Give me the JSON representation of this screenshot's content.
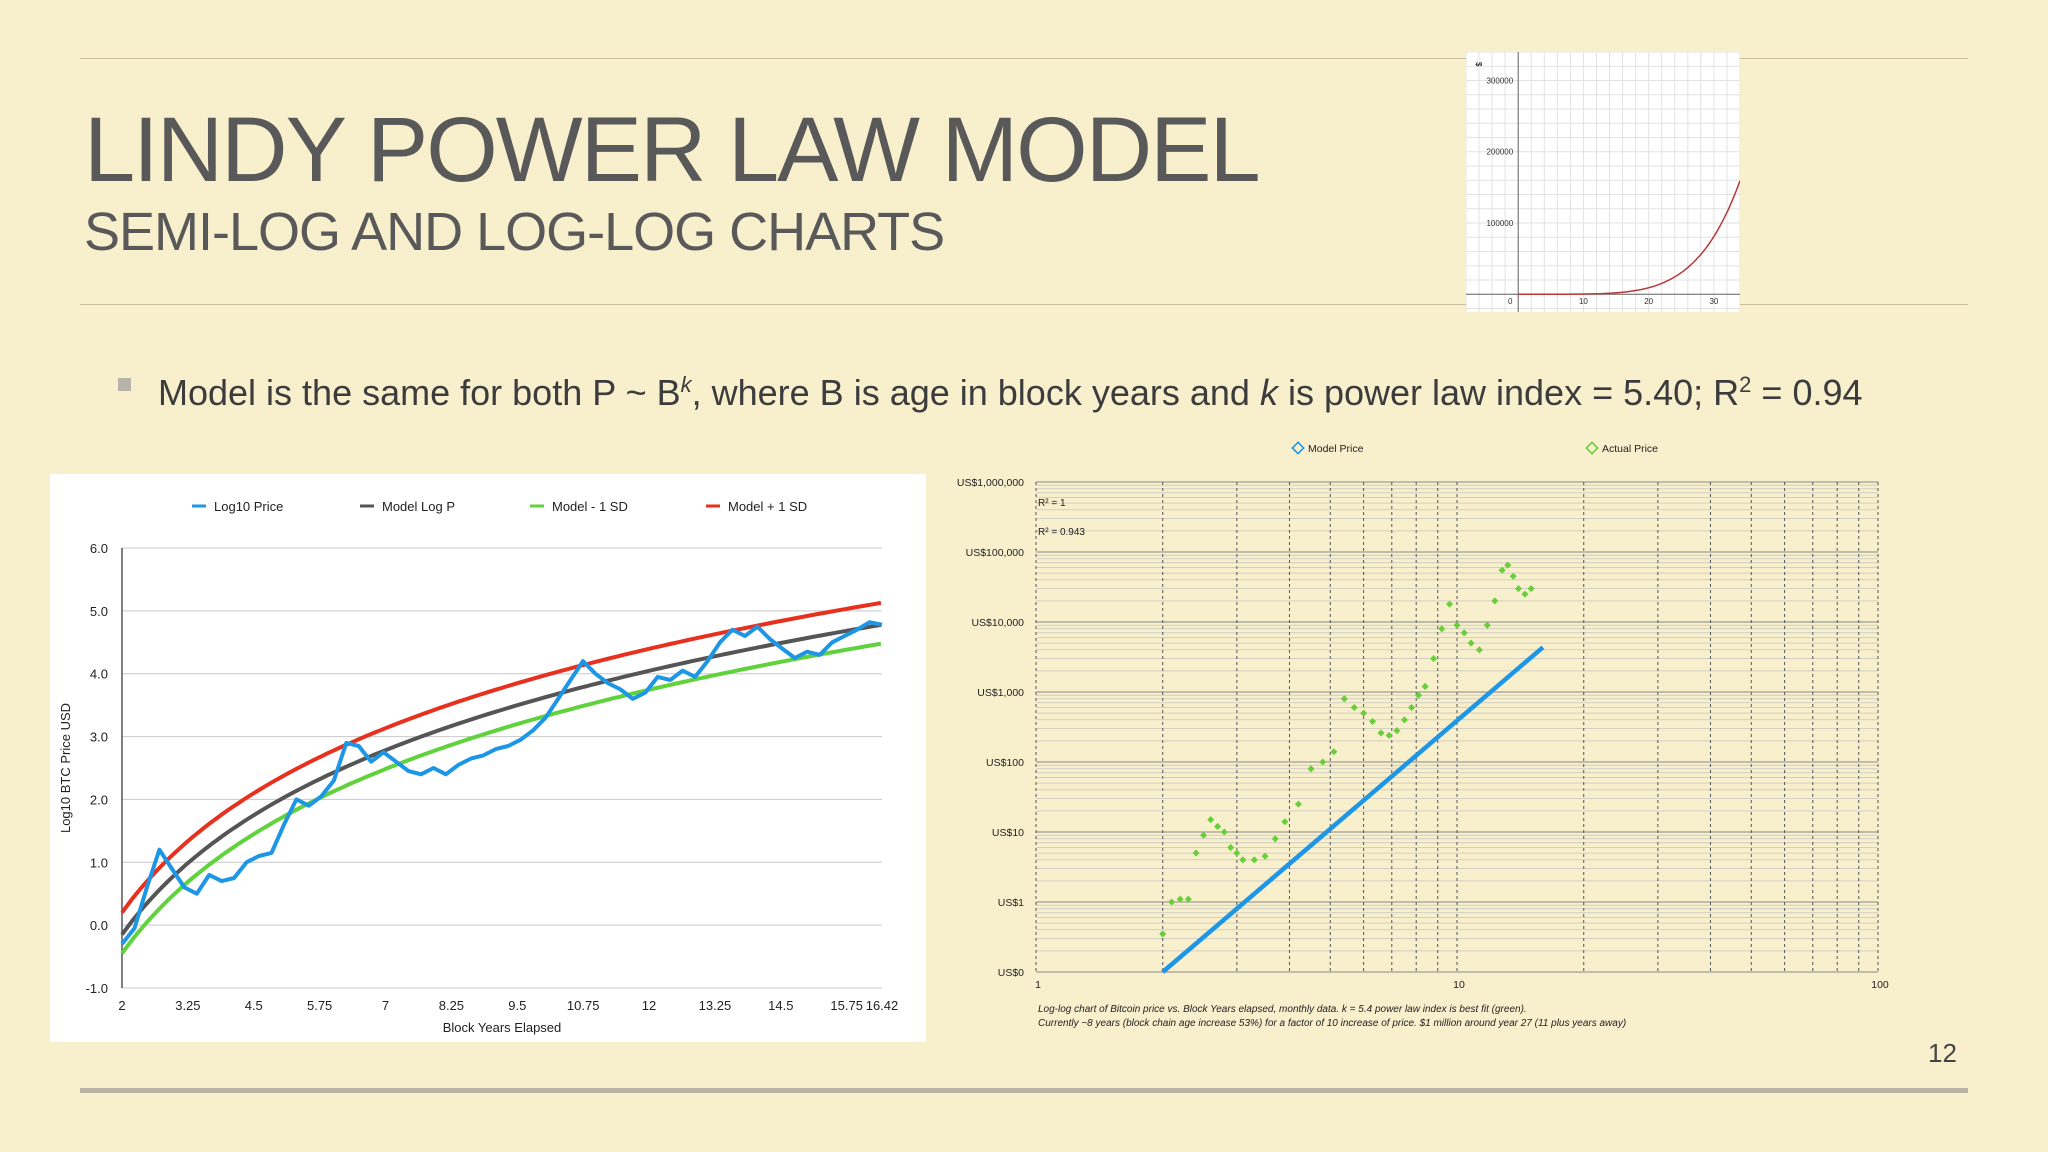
{
  "slide": {
    "title": "LINDY POWER LAW MODEL",
    "subtitle": "SEMI-LOG AND LOG-LOG CHARTS",
    "bullet_parts": {
      "a": "Model is the same for both P ~ B",
      "k_sup": "k",
      "b": ", where B is age in block years and ",
      "k_italic": "k",
      "c": " is power law index = 5.40; R",
      "two_sup": "2",
      "d": " = 0.94"
    },
    "page_number": "12",
    "colors": {
      "background": "#f8efcd",
      "title": "#595959",
      "text": "#3c3c3c"
    }
  },
  "chart_data": [
    {
      "type": "line",
      "id": "thumbnail",
      "x_ticks": [
        "0",
        "10",
        "20",
        "30"
      ],
      "y_ticks": [
        "100000",
        "200000",
        "300000"
      ],
      "y_unit": "$",
      "xlim": [
        -8,
        34
      ],
      "ylim": [
        -25000,
        340000
      ],
      "series": [
        {
          "color": "#b43a3a",
          "formula": "P = 8.56e-4 * B^5.4"
        }
      ]
    },
    {
      "type": "line",
      "id": "semilog",
      "title": "",
      "xlabel": "Block Years Elapsed",
      "ylabel": "Log10 BTC Price USD",
      "x_ticks": [
        "2",
        "3.25",
        "4.5",
        "5.75",
        "7",
        "8.25",
        "9.5",
        "10.75",
        "12",
        "13.25",
        "14.5",
        "15.75",
        "16.42"
      ],
      "y_ticks": [
        "-1.0",
        "0.0",
        "1.0",
        "2.0",
        "3.0",
        "4.0",
        "5.0",
        "6.0"
      ],
      "ylim": [
        -1,
        6
      ],
      "legend_position": "top",
      "series": [
        {
          "name": "Log10 Price",
          "color": "#1e96e6",
          "values": [
            -0.3,
            -0.05,
            0.6,
            1.2,
            0.9,
            0.6,
            0.5,
            0.8,
            0.7,
            0.75,
            1.0,
            1.1,
            1.15,
            1.6,
            2.0,
            1.9,
            2.05,
            2.3,
            2.9,
            2.85,
            2.6,
            2.75,
            2.6,
            2.45,
            2.4,
            2.5,
            2.4,
            2.55,
            2.65,
            2.7,
            2.8,
            2.85,
            2.95,
            3.1,
            3.3,
            3.6,
            3.9,
            4.2,
            4.0,
            3.85,
            3.75,
            3.6,
            3.7,
            3.95,
            3.9,
            4.05,
            3.95,
            4.2,
            4.5,
            4.7,
            4.6,
            4.75,
            4.55,
            4.4,
            4.25,
            4.35,
            4.3,
            4.5,
            4.6,
            4.7,
            4.82,
            4.78
          ]
        },
        {
          "name": "Model Log P",
          "color": "#555555",
          "values": "log10 model curve from -0.15 to 4.78"
        },
        {
          "name": "Model - 1 SD",
          "color": "#5fd23c",
          "values": "model curve shifted -0.3"
        },
        {
          "name": "Model + 1 SD",
          "color": "#e8301e",
          "values": "model curve shifted +0.35"
        }
      ]
    },
    {
      "type": "scatter",
      "id": "loglog",
      "legend": [
        "Model Price",
        "Actual Price"
      ],
      "r2_labels": [
        "R² = 1",
        "R² = 0.943"
      ],
      "x_ticks": [
        "1",
        "10",
        "100"
      ],
      "y_ticks": [
        "US$1,000,000",
        "US$100,000",
        "US$10,000",
        "US$1,000",
        "US$100",
        "US$10",
        "US$1",
        "US$0"
      ],
      "x_scale": "log",
      "y_scale": "log",
      "caption_lines": [
        "Log-log chart of Bitcoin price vs. Block Years elapsed, monthly data. k = 5.4 power law index is best fit (green).",
        "Currently ~8 years (block chain age increase 53%) for a factor of 10 increase of price. $1 million around year 27 (11 plus years away)"
      ],
      "series": [
        {
          "name": "Model Price",
          "color": "#1e96e6",
          "x_range": [
            2,
            16
          ]
        },
        {
          "name": "Actual Price",
          "color": "#6acd3c",
          "points": [
            [
              2.0,
              0.35
            ],
            [
              2.1,
              1.0
            ],
            [
              2.2,
              1.1
            ],
            [
              2.3,
              1.1
            ],
            [
              2.4,
              5
            ],
            [
              2.5,
              9
            ],
            [
              2.6,
              15
            ],
            [
              2.7,
              12
            ],
            [
              2.8,
              10
            ],
            [
              2.9,
              6
            ],
            [
              3.0,
              5
            ],
            [
              3.1,
              4
            ],
            [
              3.3,
              4
            ],
            [
              3.5,
              4.5
            ],
            [
              3.7,
              8
            ],
            [
              3.9,
              14
            ],
            [
              4.2,
              25
            ],
            [
              4.5,
              80
            ],
            [
              4.8,
              100
            ],
            [
              5.1,
              140
            ],
            [
              5.4,
              800
            ],
            [
              5.7,
              600
            ],
            [
              6.0,
              500
            ],
            [
              6.3,
              380
            ],
            [
              6.6,
              260
            ],
            [
              6.9,
              240
            ],
            [
              7.2,
              280
            ],
            [
              7.5,
              400
            ],
            [
              7.8,
              600
            ],
            [
              8.1,
              900
            ],
            [
              8.4,
              1200
            ],
            [
              8.8,
              3000
            ],
            [
              9.2,
              8000
            ],
            [
              9.6,
              18000
            ],
            [
              10.0,
              9000
            ],
            [
              10.4,
              7000
            ],
            [
              10.8,
              5000
            ],
            [
              11.3,
              4000
            ],
            [
              11.8,
              9000
            ],
            [
              12.3,
              20000
            ],
            [
              12.8,
              55000
            ],
            [
              13.2,
              65000
            ],
            [
              13.6,
              45000
            ],
            [
              14.0,
              30000
            ],
            [
              14.5,
              25000
            ],
            [
              15.0,
              30000
            ]
          ]
        }
      ]
    }
  ]
}
